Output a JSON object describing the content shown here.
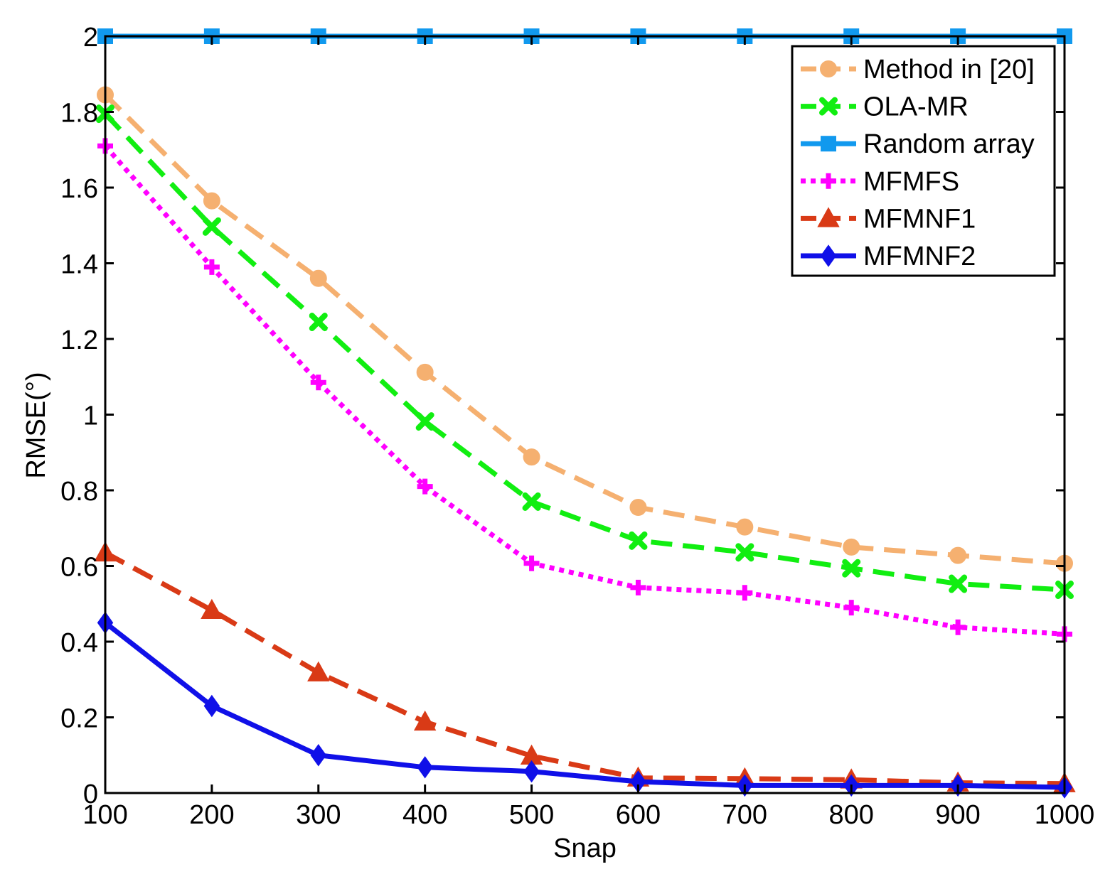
{
  "chart_data": {
    "type": "line",
    "title": "",
    "xlabel": "Snap",
    "ylabel": "RMSE(°)",
    "xlim": [
      100,
      1000
    ],
    "ylim": [
      0,
      2
    ],
    "x": [
      100,
      200,
      300,
      400,
      500,
      600,
      700,
      800,
      900,
      1000
    ],
    "x_ticks": [
      "100",
      "200",
      "300",
      "400",
      "500",
      "600",
      "700",
      "800",
      "900",
      "1000"
    ],
    "y_ticks": [
      "0",
      "0.2",
      "0.4",
      "0.6",
      "0.8",
      "1",
      "1.2",
      "1.4",
      "1.6",
      "1.8",
      "2"
    ],
    "y_tick_values": [
      0,
      0.2,
      0.4,
      0.6,
      0.8,
      1.0,
      1.2,
      1.4,
      1.6,
      1.8,
      2.0
    ],
    "grid": false,
    "legend_position": "top-right",
    "series": [
      {
        "name": "Method in [20]",
        "color": "#f5b070",
        "marker": "circle",
        "dash": "dashed",
        "values": [
          1.845,
          1.565,
          1.36,
          1.112,
          0.888,
          0.755,
          0.703,
          0.65,
          0.628,
          0.607
        ]
      },
      {
        "name": "OLA-MR",
        "color": "#11ee11",
        "marker": "x",
        "dash": "dashed",
        "values": [
          1.795,
          1.497,
          1.245,
          0.982,
          0.77,
          0.667,
          0.636,
          0.594,
          0.553,
          0.537
        ]
      },
      {
        "name": "Random array",
        "color": "#1199ee",
        "marker": "square",
        "dash": "solid",
        "values": [
          2.0,
          2.0,
          2.0,
          2.0,
          2.0,
          2.0,
          2.0,
          2.0,
          2.0,
          2.0
        ]
      },
      {
        "name": "MFMFS",
        "color": "#ff00ff",
        "marker": "plus",
        "dash": "dotted",
        "values": [
          1.71,
          1.39,
          1.085,
          0.81,
          0.607,
          0.543,
          0.529,
          0.49,
          0.438,
          0.42
        ]
      },
      {
        "name": "MFMNF1",
        "color": "#d93a16",
        "marker": "triangle",
        "dash": "dashed",
        "values": [
          0.635,
          0.483,
          0.318,
          0.188,
          0.098,
          0.04,
          0.038,
          0.035,
          0.027,
          0.025
        ]
      },
      {
        "name": "MFMNF2",
        "color": "#1010e8",
        "marker": "diamond",
        "dash": "solid",
        "values": [
          0.45,
          0.23,
          0.1,
          0.068,
          0.057,
          0.03,
          0.02,
          0.02,
          0.02,
          0.015
        ]
      }
    ]
  }
}
